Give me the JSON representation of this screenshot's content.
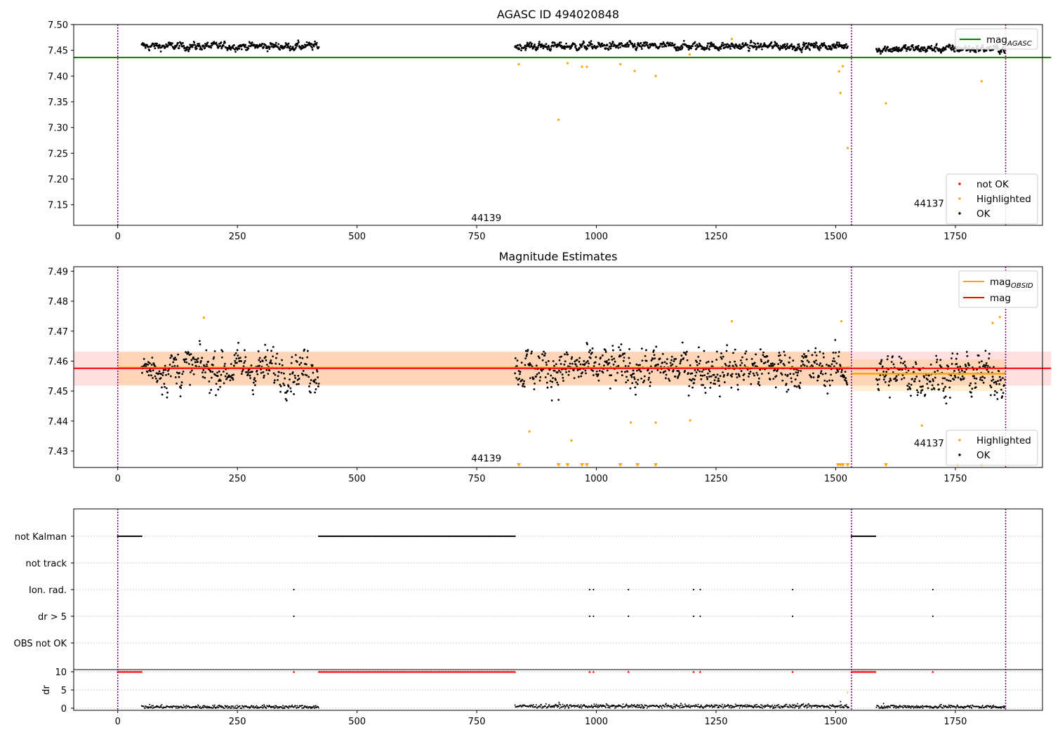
{
  "chart_data": [
    {
      "type": "scatter",
      "title": "AGASC ID 494020848",
      "xlim": [
        -92,
        1932
      ],
      "ylim": [
        7.11,
        7.5
      ],
      "xticks": [
        "0",
        "250",
        "500",
        "750",
        "1000",
        "1250",
        "1500",
        "1750",
        "2000"
      ],
      "yticks": [
        "7.15",
        "7.20",
        "7.25",
        "7.30",
        "7.35",
        "7.40",
        "7.45",
        "7.50"
      ],
      "vlines": [
        0,
        1533,
        1855
      ],
      "hlines": [
        {
          "name": "mag_AGASC",
          "y": 7.436,
          "x": [
            -92,
            1950
          ],
          "color": "#008000"
        }
      ],
      "annotations": [
        {
          "text": "44139",
          "x": 770,
          "y": 7.118
        },
        {
          "text": "44137",
          "x": 1695,
          "y": 7.146
        }
      ],
      "segments_ok": [
        {
          "x": [
            50,
            420
          ],
          "y": 7.458,
          "spread": 0.006
        },
        {
          "x": [
            830,
            1525
          ],
          "y": 7.458,
          "spread": 0.006
        },
        {
          "x": [
            1585,
            1855
          ],
          "y": 7.453,
          "spread": 0.006
        }
      ],
      "highlighted": [
        {
          "x": 838,
          "y": 7.423
        },
        {
          "x": 921,
          "y": 7.315
        },
        {
          "x": 940,
          "y": 7.425
        },
        {
          "x": 970,
          "y": 7.418
        },
        {
          "x": 980,
          "y": 7.418
        },
        {
          "x": 1050,
          "y": 7.423
        },
        {
          "x": 1080,
          "y": 7.41
        },
        {
          "x": 1124,
          "y": 7.4
        },
        {
          "x": 1507,
          "y": 7.409
        },
        {
          "x": 1510,
          "y": 7.367
        },
        {
          "x": 1515,
          "y": 7.419
        },
        {
          "x": 1525,
          "y": 7.26
        },
        {
          "x": 1605,
          "y": 7.347
        },
        {
          "x": 1755,
          "y": 7.138
        },
        {
          "x": 1805,
          "y": 7.39
        },
        {
          "x": 1845,
          "y": 7.47
        },
        {
          "x": 1283,
          "y": 7.472
        },
        {
          "x": 1195,
          "y": 7.442
        }
      ],
      "legend_lines": {
        "position": "upper right",
        "entries": [
          {
            "label": "mag",
            "sub": "AGASC",
            "color": "#008000"
          }
        ]
      },
      "legend_points": {
        "position": "lower right",
        "entries": [
          {
            "label": "not OK",
            "color": "#ff0000"
          },
          {
            "label": "Highlighted",
            "color": "#ffa500"
          },
          {
            "label": "OK",
            "color": "#000000"
          }
        ]
      }
    },
    {
      "type": "scatter",
      "title": "Magnitude Estimates",
      "xlim": [
        -92,
        1932
      ],
      "ylim": [
        7.4245,
        7.4915
      ],
      "xticks": [
        "0",
        "250",
        "500",
        "750",
        "1000",
        "1250",
        "1500",
        "1750",
        "2000"
      ],
      "yticks": [
        "7.43",
        "7.44",
        "7.45",
        "7.46",
        "7.47",
        "7.48",
        "7.49"
      ],
      "vlines": [
        0,
        1533,
        1855
      ],
      "mag_line": {
        "name": "mag",
        "y": 7.4576,
        "band": [
          7.4518,
          7.4632
        ],
        "x": [
          -92,
          1950
        ],
        "color": "#ff0000"
      },
      "obsid_segments": [
        {
          "x": [
            0,
            1533
          ],
          "y": 7.4578,
          "band": [
            7.452,
            7.463
          ]
        },
        {
          "x": [
            1533,
            1855
          ],
          "y": 7.4558,
          "band": [
            7.45,
            7.4605
          ]
        }
      ],
      "annotations": [
        {
          "text": "44139",
          "x": 770,
          "y": 7.4265
        },
        {
          "text": "44137",
          "x": 1695,
          "y": 7.4315
        }
      ],
      "segments_ok": [
        {
          "x": [
            50,
            420
          ],
          "y": 7.4575,
          "spread": 0.0055
        },
        {
          "x": [
            830,
            1525
          ],
          "y": 7.4575,
          "spread": 0.0055
        },
        {
          "x": [
            1585,
            1855
          ],
          "y": 7.4555,
          "spread": 0.0055
        }
      ],
      "highlighted": [
        {
          "x": 180,
          "y": 7.4745
        },
        {
          "x": 860,
          "y": 7.4365
        },
        {
          "x": 948,
          "y": 7.4335
        },
        {
          "x": 1072,
          "y": 7.4395
        },
        {
          "x": 1124,
          "y": 7.4395
        },
        {
          "x": 1196,
          "y": 7.4402
        },
        {
          "x": 1283,
          "y": 7.4733
        },
        {
          "x": 1512,
          "y": 7.4733
        },
        {
          "x": 1680,
          "y": 7.4385
        },
        {
          "x": 1828,
          "y": 7.4727
        },
        {
          "x": 1843,
          "y": 7.4747
        }
      ],
      "offscale_markers_x": [
        838,
        921,
        940,
        970,
        980,
        1050,
        1086,
        1124,
        1505,
        1510,
        1515,
        1525,
        1605,
        1755,
        1805
      ],
      "legend_lines": {
        "position": "upper right",
        "entries": [
          {
            "label": "mag",
            "sub": "OBSID",
            "color": "#ffa500"
          },
          {
            "label": "mag",
            "sub": "",
            "color": "#ff0000"
          }
        ]
      },
      "legend_points": {
        "position": "lower right",
        "entries": [
          {
            "label": "Highlighted",
            "color": "#ffa500"
          },
          {
            "label": "OK",
            "color": "#000000"
          }
        ]
      }
    },
    {
      "type": "scatter",
      "title": "",
      "xlim": [
        -92,
        1932
      ],
      "xticks": [
        "0",
        "250",
        "500",
        "750",
        "1000",
        "1250",
        "1500",
        "1750",
        "2000"
      ],
      "vlines": [
        0,
        1533,
        1855
      ],
      "flag_rows": [
        "not Kalman",
        "not track",
        "Ion. rad.",
        "dr > 5",
        "OBS not OK"
      ],
      "flags": {
        "not Kalman": {
          "ranges": [
            [
              0,
              50
            ],
            [
              420,
              830
            ],
            [
              1533,
              1583
            ]
          ],
          "points": []
        },
        "not track": {
          "ranges": [],
          "points": []
        },
        "Ion. rad.": {
          "ranges": [],
          "points": [
            368,
            986,
            994,
            1067,
            1203,
            1217,
            1410,
            1703
          ]
        },
        "dr > 5": {
          "ranges": [],
          "points": [
            368,
            986,
            994,
            1067,
            1203,
            1217,
            1410,
            1703
          ]
        },
        "OBS not OK": {
          "ranges": [],
          "points": []
        }
      },
      "dr_axis": {
        "label": "dr",
        "yticks": [
          "0",
          "5",
          "10"
        ],
        "ylim": [
          -0.3,
          10.7
        ]
      },
      "dr_clipped_ranges": [
        [
          0,
          50
        ],
        [
          420,
          830
        ],
        [
          1533,
          1583
        ]
      ],
      "dr_clipped_points": [
        368,
        986,
        994,
        1067,
        1203,
        1217,
        1410,
        1703
      ],
      "dr_segments": [
        {
          "x": [
            50,
            420
          ],
          "y": 0.35
        },
        {
          "x": [
            830,
            1528
          ],
          "y": 0.55
        },
        {
          "x": [
            1585,
            1855
          ],
          "y": 0.4
        }
      ],
      "dr_extra_points": [
        {
          "x": 1525,
          "y": 4.3
        },
        {
          "x": 1510,
          "y": 1.8
        },
        {
          "x": 922,
          "y": 1.6
        },
        {
          "x": 1600,
          "y": 1.3
        }
      ]
    }
  ]
}
